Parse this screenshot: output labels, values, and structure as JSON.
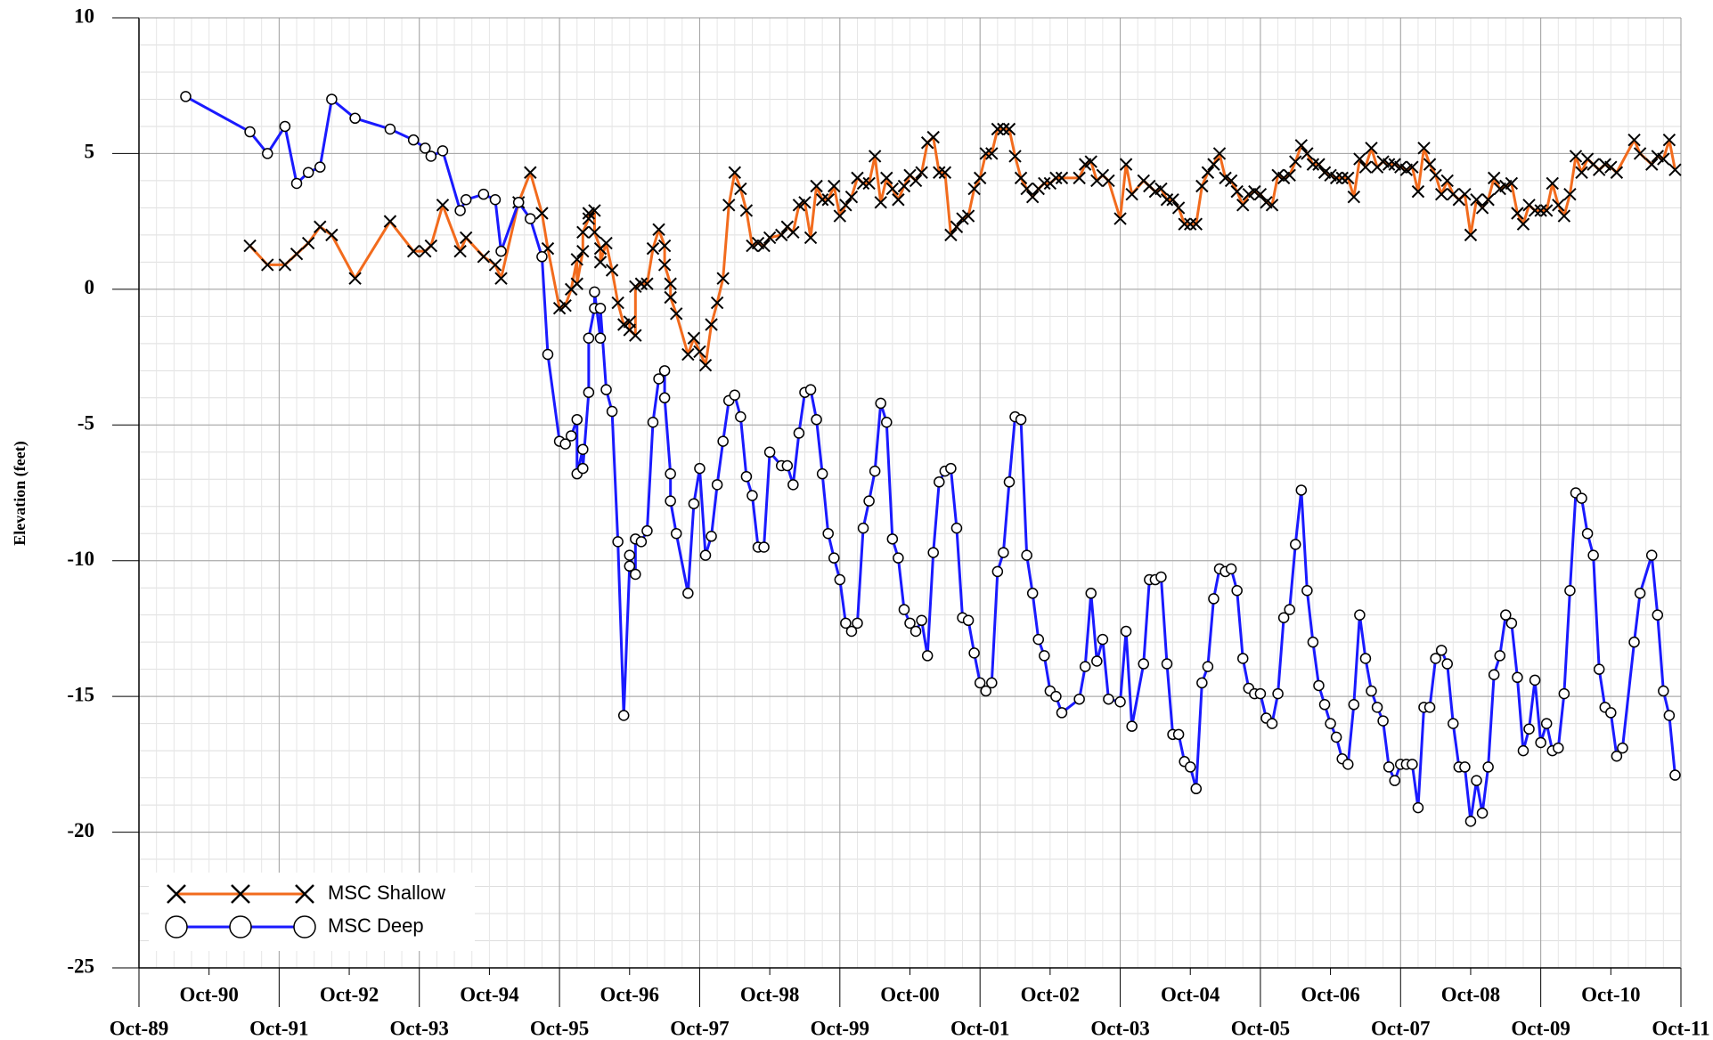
{
  "chart_data": {
    "type": "line",
    "y_label": "Elevation (feet)",
    "ylim": [
      -25,
      10
    ],
    "yticks": [
      -25,
      -20,
      -15,
      -10,
      -5,
      0,
      5,
      10
    ],
    "xlim": [
      "1989-10",
      "2011-10"
    ],
    "xticks": [
      {
        "value": "1989-10",
        "label": "Oct-89"
      },
      {
        "value": "1990-10",
        "label": "Oct-90"
      },
      {
        "value": "1991-10",
        "label": "Oct-91"
      },
      {
        "value": "1992-10",
        "label": "Oct-92"
      },
      {
        "value": "1993-10",
        "label": "Oct-93"
      },
      {
        "value": "1994-10",
        "label": "Oct-94"
      },
      {
        "value": "1995-10",
        "label": "Oct-95"
      },
      {
        "value": "1996-10",
        "label": "Oct-96"
      },
      {
        "value": "1997-10",
        "label": "Oct-97"
      },
      {
        "value": "1998-10",
        "label": "Oct-98"
      },
      {
        "value": "1999-10",
        "label": "Oct-99"
      },
      {
        "value": "2000-10",
        "label": "Oct-00"
      },
      {
        "value": "2001-10",
        "label": "Oct-01"
      },
      {
        "value": "2002-10",
        "label": "Oct-02"
      },
      {
        "value": "2003-10",
        "label": "Oct-03"
      },
      {
        "value": "2004-10",
        "label": "Oct-04"
      },
      {
        "value": "2005-10",
        "label": "Oct-05"
      },
      {
        "value": "2006-10",
        "label": "Oct-06"
      },
      {
        "value": "2007-10",
        "label": "Oct-07"
      },
      {
        "value": "2008-10",
        "label": "Oct-08"
      },
      {
        "value": "2009-10",
        "label": "Oct-09"
      },
      {
        "value": "2010-10",
        "label": "Oct-10"
      },
      {
        "value": "2011-10",
        "label": "Oct-11"
      }
    ],
    "grid": true,
    "legend": "lower left",
    "series": [
      {
        "name": "MSC Shallow",
        "color": "#f26b1d",
        "marker": "x",
        "x": [
          "1991-05",
          "1991-08",
          "1991-11",
          "1992-01",
          "1992-03",
          "1992-05",
          "1992-07",
          "1992-11",
          "1993-05",
          "1993-09",
          "1993-11",
          "1993-12",
          "1994-02",
          "1994-05",
          "1994-06",
          "1994-09",
          "1994-11",
          "1994-12",
          "1995-03",
          "1995-05",
          "1995-07",
          "1995-08",
          "1995-10",
          "1995-11",
          "1995-12",
          "1996-01",
          "1996-01",
          "1996-02",
          "1996-02",
          "1996-03",
          "1996-03",
          "1996-04",
          "1996-04",
          "1996-05",
          "1996-05",
          "1996-06",
          "1996-07",
          "1996-08",
          "1996-09",
          "1996-10",
          "1996-10",
          "1996-11",
          "1996-11",
          "1996-12",
          "1997-01",
          "1997-02",
          "1997-03",
          "1997-04",
          "1997-04",
          "1997-05",
          "1997-05",
          "1997-06",
          "1997-08",
          "1997-09",
          "1997-10",
          "1997-11",
          "1997-12",
          "1998-01",
          "1998-02",
          "1998-03",
          "1998-04",
          "1998-05",
          "1998-06",
          "1998-07",
          "1998-08",
          "1998-09",
          "1998-10",
          "1998-12",
          "1999-01",
          "1999-02",
          "1999-03",
          "1999-04",
          "1999-05",
          "1999-06",
          "1999-07",
          "1999-08",
          "1999-09",
          "1999-10",
          "1999-11",
          "1999-12",
          "2000-01",
          "2000-02",
          "2000-03",
          "2000-04",
          "2000-05",
          "2000-06",
          "2000-07",
          "2000-08",
          "2000-09",
          "2000-10",
          "2000-11",
          "2000-12",
          "2001-01",
          "2001-02",
          "2001-03",
          "2001-04",
          "2001-05",
          "2001-06",
          "2001-07",
          "2001-08",
          "2001-09",
          "2001-10",
          "2001-11",
          "2001-12",
          "2002-01",
          "2002-02",
          "2002-03",
          "2002-04",
          "2002-05",
          "2002-06",
          "2002-07",
          "2002-08",
          "2002-09",
          "2002-10",
          "2002-11",
          "2002-12",
          "2003-03",
          "2003-04",
          "2003-05",
          "2003-06",
          "2003-07",
          "2003-08",
          "2003-10",
          "2003-11",
          "2003-12",
          "2004-02",
          "2004-03",
          "2004-04",
          "2004-05",
          "2004-06",
          "2004-07",
          "2004-08",
          "2004-09",
          "2004-10",
          "2004-11",
          "2004-12",
          "2005-01",
          "2005-02",
          "2005-03",
          "2005-04",
          "2005-05",
          "2005-06",
          "2005-07",
          "2005-08",
          "2005-09",
          "2005-10",
          "2005-11",
          "2005-12",
          "2006-01",
          "2006-02",
          "2006-03",
          "2006-04",
          "2006-05",
          "2006-06",
          "2006-07",
          "2006-08",
          "2006-09",
          "2006-10",
          "2006-11",
          "2006-12",
          "2007-01",
          "2007-02",
          "2007-03",
          "2007-04",
          "2007-05",
          "2007-06",
          "2007-07",
          "2007-08",
          "2007-09",
          "2007-10",
          "2007-11",
          "2007-12",
          "2008-01",
          "2008-02",
          "2008-03",
          "2008-04",
          "2008-05",
          "2008-06",
          "2008-07",
          "2008-08",
          "2008-09",
          "2008-10",
          "2008-11",
          "2008-12",
          "2009-01",
          "2009-02",
          "2009-03",
          "2009-04",
          "2009-05",
          "2009-06",
          "2009-07",
          "2009-08",
          "2009-09",
          "2009-10",
          "2009-11",
          "2009-12",
          "2010-01",
          "2010-02",
          "2010-03",
          "2010-04",
          "2010-05",
          "2010-06",
          "2010-07",
          "2010-08",
          "2010-09",
          "2010-10",
          "2010-11",
          "2011-02",
          "2011-03",
          "2011-05",
          "2011-06",
          "2011-07",
          "2011-08",
          "2011-09"
        ],
        "values": [
          1.6,
          0.9,
          0.9,
          1.3,
          1.7,
          2.3,
          2.0,
          0.4,
          2.5,
          1.4,
          1.4,
          1.6,
          3.1,
          1.4,
          1.9,
          1.2,
          0.9,
          0.4,
          3.2,
          4.3,
          2.8,
          1.5,
          -0.7,
          -0.6,
          0.0,
          1.1,
          0.2,
          1.4,
          2.1,
          2.6,
          2.8,
          2.9,
          2.1,
          1.5,
          1.0,
          1.7,
          0.7,
          -0.5,
          -1.3,
          -1.2,
          -1.5,
          -1.7,
          0.1,
          0.2,
          0.2,
          1.5,
          2.2,
          1.6,
          0.9,
          0.2,
          -0.3,
          -0.9,
          -2.4,
          -1.8,
          -2.3,
          -2.8,
          -1.3,
          -0.5,
          0.4,
          3.1,
          4.3,
          3.7,
          2.9,
          1.6,
          1.7,
          1.6,
          1.9,
          2.0,
          2.3,
          2.1,
          3.1,
          3.2,
          1.9,
          3.8,
          3.3,
          3.3,
          3.8,
          2.7,
          3.1,
          3.4,
          4.1,
          3.9,
          3.9,
          4.9,
          3.2,
          4.1,
          3.7,
          3.3,
          3.8,
          4.2,
          4.0,
          4.3,
          5.4,
          5.6,
          4.3,
          4.3,
          2.0,
          2.3,
          2.6,
          2.7,
          3.7,
          4.1,
          5.0,
          5.0,
          5.9,
          5.9,
          5.9,
          4.9,
          4.1,
          3.7,
          3.4,
          3.7,
          3.9,
          3.9,
          4.1,
          4.1,
          4.1,
          4.6,
          4.7,
          4.0,
          4.2,
          4.0,
          2.6,
          4.6,
          3.5,
          4.0,
          3.8,
          3.6,
          3.7,
          3.3,
          3.3,
          3.0,
          2.4,
          2.4,
          2.4,
          3.8,
          4.3,
          4.6,
          5.0,
          4.1,
          4.0,
          3.6,
          3.1,
          3.5,
          3.6,
          3.5,
          3.2,
          3.1,
          4.2,
          4.1,
          4.2,
          4.7,
          5.3,
          5.0,
          4.6,
          4.6,
          4.3,
          4.2,
          4.1,
          4.1,
          4.1,
          3.4,
          4.8,
          4.5,
          5.2,
          4.5,
          4.7,
          4.6,
          4.6,
          4.5,
          4.4,
          4.5,
          3.6,
          5.2,
          4.6,
          4.2,
          3.5,
          4.0,
          3.5,
          3.3,
          3.5,
          2.0,
          3.3,
          3.0,
          3.3,
          4.1,
          3.7,
          3.8,
          3.9,
          2.8,
          2.4,
          3.1,
          2.9,
          2.9,
          2.9,
          3.9,
          3.1,
          2.7,
          3.5,
          4.9,
          4.3,
          4.8,
          4.6,
          4.4,
          4.6,
          4.5,
          4.3,
          5.5,
          5.0,
          4.6,
          4.9,
          4.8,
          5.5,
          4.4
        ]
      },
      {
        "name": "MSC Deep",
        "color": "#1a1aff",
        "marker": "circle",
        "x": [
          "1990-06",
          "1991-05",
          "1991-08",
          "1991-11",
          "1992-01",
          "1992-03",
          "1992-05",
          "1992-07",
          "1992-11",
          "1993-05",
          "1993-09",
          "1993-11",
          "1993-12",
          "1994-02",
          "1994-05",
          "1994-06",
          "1994-09",
          "1994-11",
          "1994-12",
          "1995-03",
          "1995-05",
          "1995-07",
          "1995-08",
          "1995-10",
          "1995-11",
          "1995-12",
          "1996-01",
          "1996-01",
          "1996-02",
          "1996-02",
          "1996-03",
          "1996-03",
          "1996-04",
          "1996-04",
          "1996-05",
          "1996-05",
          "1996-06",
          "1996-07",
          "1996-08",
          "1996-09",
          "1996-10",
          "1996-10",
          "1996-11",
          "1996-11",
          "1996-12",
          "1997-01",
          "1997-02",
          "1997-03",
          "1997-04",
          "1997-04",
          "1997-05",
          "1997-05",
          "1997-06",
          "1997-08",
          "1997-09",
          "1997-10",
          "1997-11",
          "1997-12",
          "1998-01",
          "1998-02",
          "1998-03",
          "1998-04",
          "1998-05",
          "1998-06",
          "1998-07",
          "1998-08",
          "1998-09",
          "1998-10",
          "1998-12",
          "1999-01",
          "1999-02",
          "1999-03",
          "1999-04",
          "1999-05",
          "1999-06",
          "1999-07",
          "1999-08",
          "1999-09",
          "1999-10",
          "1999-11",
          "1999-12",
          "2000-01",
          "2000-02",
          "2000-03",
          "2000-04",
          "2000-05",
          "2000-06",
          "2000-07",
          "2000-08",
          "2000-09",
          "2000-10",
          "2000-11",
          "2000-12",
          "2001-01",
          "2001-02",
          "2001-03",
          "2001-04",
          "2001-05",
          "2001-06",
          "2001-07",
          "2001-08",
          "2001-09",
          "2001-10",
          "2001-11",
          "2001-12",
          "2002-01",
          "2002-02",
          "2002-03",
          "2002-04",
          "2002-05",
          "2002-06",
          "2002-07",
          "2002-08",
          "2002-09",
          "2002-10",
          "2002-11",
          "2002-12",
          "2003-03",
          "2003-04",
          "2003-05",
          "2003-06",
          "2003-07",
          "2003-08",
          "2003-10",
          "2003-11",
          "2003-12",
          "2004-02",
          "2004-03",
          "2004-04",
          "2004-05",
          "2004-06",
          "2004-07",
          "2004-08",
          "2004-09",
          "2004-10",
          "2004-11",
          "2004-12",
          "2005-01",
          "2005-02",
          "2005-03",
          "2005-04",
          "2005-05",
          "2005-06",
          "2005-07",
          "2005-08",
          "2005-09",
          "2005-10",
          "2005-11",
          "2005-12",
          "2006-01",
          "2006-02",
          "2006-03",
          "2006-04",
          "2006-05",
          "2006-06",
          "2006-07",
          "2006-08",
          "2006-09",
          "2006-10",
          "2006-11",
          "2006-12",
          "2007-01",
          "2007-02",
          "2007-03",
          "2007-04",
          "2007-05",
          "2007-06",
          "2007-07",
          "2007-08",
          "2007-09",
          "2007-10",
          "2007-11",
          "2007-12",
          "2008-01",
          "2008-02",
          "2008-03",
          "2008-04",
          "2008-05",
          "2008-06",
          "2008-07",
          "2008-08",
          "2008-09",
          "2008-10",
          "2008-11",
          "2008-12",
          "2009-01",
          "2009-02",
          "2009-03",
          "2009-04",
          "2009-05",
          "2009-06",
          "2009-07",
          "2009-08",
          "2009-09",
          "2009-10",
          "2009-11",
          "2009-12",
          "2010-01",
          "2010-02",
          "2010-03",
          "2010-04",
          "2010-05",
          "2010-06",
          "2010-07",
          "2010-08",
          "2010-09",
          "2010-10",
          "2010-11",
          "2010-12",
          "2011-02",
          "2011-03",
          "2011-05",
          "2011-06",
          "2011-07",
          "2011-08",
          "2011-09"
        ],
        "values": [
          7.1,
          5.8,
          5.0,
          6.0,
          3.9,
          4.3,
          4.5,
          7.0,
          6.3,
          5.9,
          5.5,
          5.2,
          4.9,
          5.1,
          2.9,
          3.3,
          3.5,
          3.3,
          1.4,
          3.2,
          2.6,
          1.2,
          -2.4,
          -5.6,
          -5.7,
          -5.4,
          -4.8,
          -6.8,
          -5.9,
          -6.6,
          -3.8,
          -1.8,
          -0.7,
          -0.1,
          -1.8,
          -0.7,
          -3.7,
          -4.5,
          -9.3,
          -15.7,
          -10.2,
          -9.8,
          -10.5,
          -9.2,
          -9.3,
          -8.9,
          -4.9,
          -3.3,
          -3.0,
          -4.0,
          -6.8,
          -7.8,
          -9.0,
          -11.2,
          -7.9,
          -6.6,
          -9.8,
          -9.1,
          -7.2,
          -5.6,
          -4.1,
          -3.9,
          -4.7,
          -6.9,
          -7.6,
          -9.5,
          -9.5,
          -6.0,
          -6.5,
          -6.5,
          -7.2,
          -5.3,
          -3.8,
          -3.7,
          -4.8,
          -6.8,
          -9.0,
          -9.9,
          -10.7,
          -12.3,
          -12.6,
          -12.3,
          -8.8,
          -7.8,
          -6.7,
          -4.2,
          -4.9,
          -9.2,
          -9.9,
          -11.8,
          -12.3,
          -12.6,
          -12.2,
          -13.5,
          -9.7,
          -7.1,
          -6.7,
          -6.6,
          -8.8,
          -12.1,
          -12.2,
          -13.4,
          -14.5,
          -14.8,
          -14.5,
          -10.4,
          -9.7,
          -7.1,
          -4.7,
          -4.8,
          -9.8,
          -11.2,
          -12.9,
          -13.5,
          -14.8,
          -15.0,
          -15.6,
          -15.1,
          -13.9,
          -11.2,
          -13.7,
          -12.9,
          -15.1,
          -15.2,
          -12.6,
          -16.1,
          -13.8,
          -10.7,
          -10.7,
          -10.6,
          -13.8,
          -16.4,
          -16.4,
          -17.4,
          -17.6,
          -18.4,
          -14.5,
          -13.9,
          -11.4,
          -10.3,
          -10.4,
          -10.3,
          -11.1,
          -13.6,
          -14.7,
          -14.9,
          -14.9,
          -15.8,
          -16.0,
          -14.9,
          -12.1,
          -11.8,
          -9.4,
          -7.4,
          -11.1,
          -13.0,
          -14.6,
          -15.3,
          -16.0,
          -16.5,
          -17.3,
          -17.5,
          -15.3,
          -12.0,
          -13.6,
          -14.8,
          -15.4,
          -15.9,
          -17.6,
          -18.1,
          -17.5,
          -17.5,
          -17.5,
          -19.1,
          -15.4,
          -15.4,
          -13.6,
          -13.3,
          -13.8,
          -16.0,
          -17.6,
          -17.6,
          -19.6,
          -18.1,
          -19.3,
          -17.6,
          -14.2,
          -13.5,
          -12.0,
          -12.3,
          -14.3,
          -17.0,
          -16.2,
          -14.4,
          -16.7,
          -16.0,
          -17.0,
          -16.9,
          -14.9,
          -11.1,
          -7.5,
          -7.7,
          -9.0,
          -9.8,
          -14.0,
          -15.4,
          -15.6,
          -17.2,
          -16.9,
          -13.0,
          -11.2,
          -9.8,
          -12.0,
          -14.8,
          -15.7,
          -17.9
        ]
      }
    ]
  }
}
